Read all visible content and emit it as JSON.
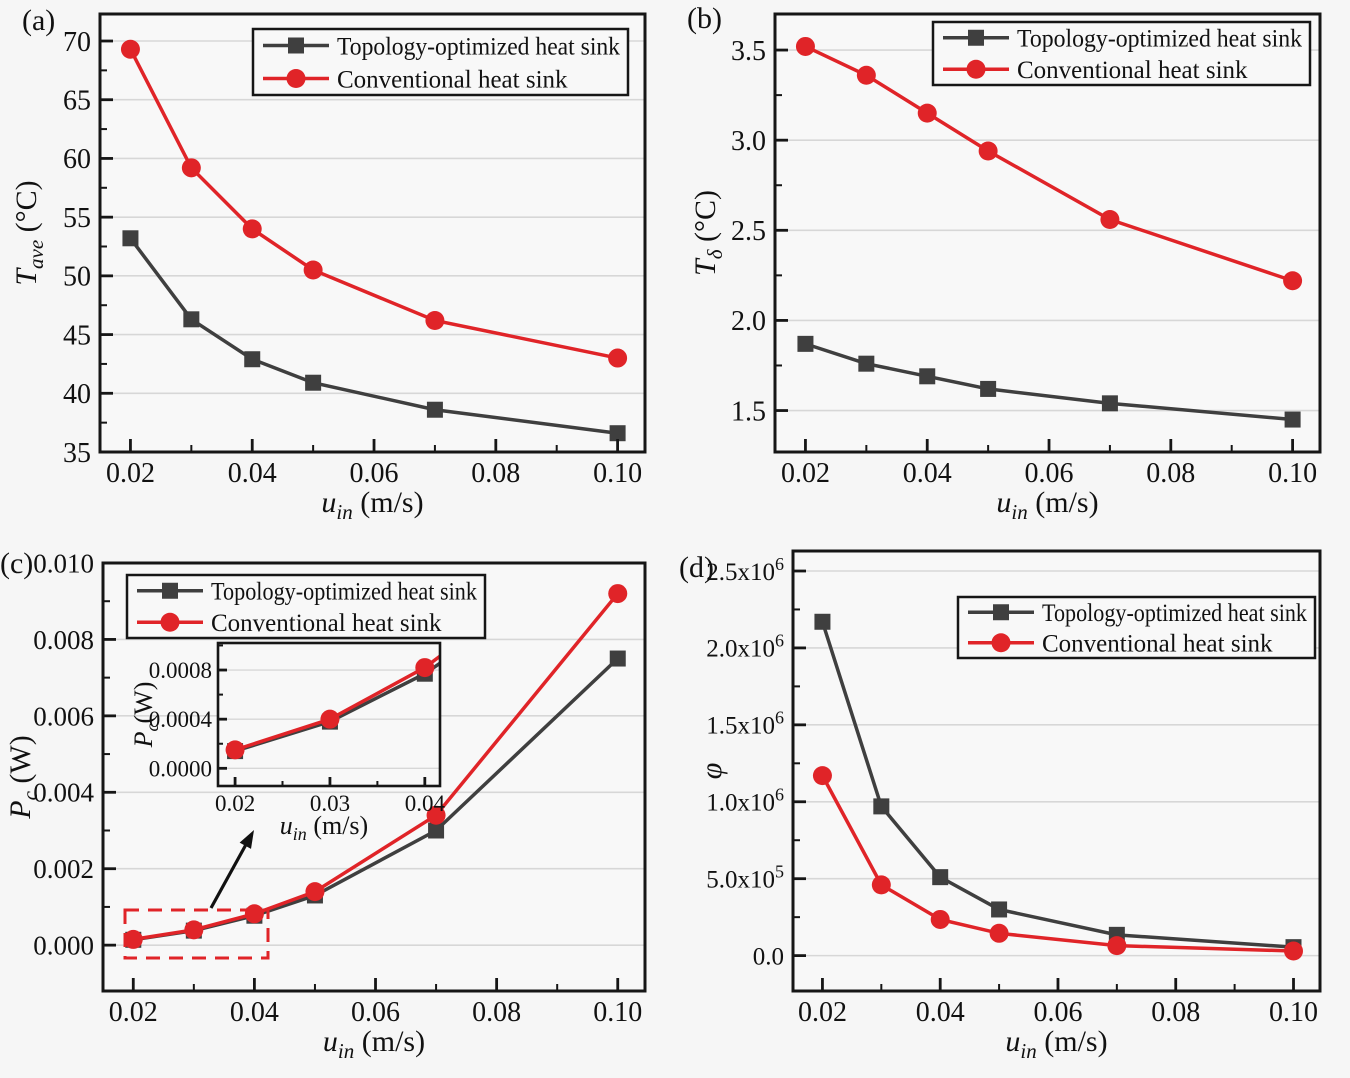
{
  "colors": {
    "topology": "#3f3f3f",
    "conventional": "#e02428",
    "grid": "#d7d7d7",
    "axis": "#161616",
    "plot_background": "#f8f8f8",
    "zoom_region": "#e02428"
  },
  "chart_data": [
    {
      "tag": "(a)",
      "type": "line",
      "xlabel": {
        "main": "u",
        "sub": "in",
        "rest": " (m/s)"
      },
      "ylabel": {
        "main": "T",
        "sub": "ave",
        "rest": " (°C)"
      },
      "xlim": [
        0.015,
        0.1045
      ],
      "ylim": [
        35,
        72.3
      ],
      "grid": "horizontal",
      "legend_position": "top-center",
      "x_ticks": [
        {
          "v": 0.02,
          "label": "0.02"
        },
        {
          "v": 0.04,
          "label": "0.04"
        },
        {
          "v": 0.06,
          "label": "0.06"
        },
        {
          "v": 0.08,
          "label": "0.08"
        },
        {
          "v": 0.1,
          "label": "0.10"
        }
      ],
      "x_minor_ticks": [
        0.03,
        0.05,
        0.07,
        0.09
      ],
      "y_ticks": [
        {
          "v": 35,
          "label": "35"
        },
        {
          "v": 40,
          "label": "40"
        },
        {
          "v": 45,
          "label": "45"
        },
        {
          "v": 50,
          "label": "50"
        },
        {
          "v": 55,
          "label": "55"
        },
        {
          "v": 60,
          "label": "60"
        },
        {
          "v": 65,
          "label": "65"
        },
        {
          "v": 70,
          "label": "70"
        }
      ],
      "y_minor_ticks": [
        37.5,
        42.5,
        47.5,
        52.5,
        57.5,
        62.5,
        67.5
      ],
      "x": [
        0.02,
        0.03,
        0.04,
        0.05,
        0.07,
        0.1
      ],
      "series": [
        {
          "name": "Topology-optimized heat sink",
          "marker": "square",
          "color_key": "topology",
          "values": [
            53.2,
            46.3,
            42.9,
            40.9,
            38.6,
            36.6
          ]
        },
        {
          "name": "Conventional heat sink",
          "marker": "circle",
          "color_key": "conventional",
          "values": [
            69.3,
            59.2,
            54.0,
            50.5,
            46.2,
            43.0
          ]
        }
      ]
    },
    {
      "tag": "(b)",
      "type": "line",
      "xlabel": {
        "main": "u",
        "sub": "in",
        "rest": " (m/s)"
      },
      "ylabel": {
        "main": "T",
        "sub": "δ",
        "rest": " (°C)"
      },
      "xlim": [
        0.015,
        0.1045
      ],
      "ylim": [
        1.27,
        3.7
      ],
      "grid": "horizontal",
      "legend_position": "top-right",
      "x_ticks": [
        {
          "v": 0.02,
          "label": "0.02"
        },
        {
          "v": 0.04,
          "label": "0.04"
        },
        {
          "v": 0.06,
          "label": "0.06"
        },
        {
          "v": 0.08,
          "label": "0.08"
        },
        {
          "v": 0.1,
          "label": "0.10"
        }
      ],
      "x_minor_ticks": [
        0.03,
        0.05,
        0.07,
        0.09
      ],
      "y_ticks": [
        {
          "v": 1.5,
          "label": "1.5"
        },
        {
          "v": 2.0,
          "label": "2.0"
        },
        {
          "v": 2.5,
          "label": "2.5"
        },
        {
          "v": 3.0,
          "label": "3.0"
        },
        {
          "v": 3.5,
          "label": "3.5"
        }
      ],
      "y_minor_ticks": [
        1.75,
        2.25,
        2.75,
        3.25
      ],
      "x": [
        0.02,
        0.03,
        0.04,
        0.05,
        0.07,
        0.1
      ],
      "series": [
        {
          "name": "Topology-optimized heat sink",
          "marker": "square",
          "color_key": "topology",
          "values": [
            1.87,
            1.76,
            1.69,
            1.62,
            1.54,
            1.45
          ]
        },
        {
          "name": "Conventional heat sink",
          "marker": "circle",
          "color_key": "conventional",
          "values": [
            3.52,
            3.36,
            3.15,
            2.94,
            2.56,
            2.22
          ]
        }
      ]
    },
    {
      "tag": "(c)",
      "type": "line",
      "xlabel": {
        "main": "u",
        "sub": "in",
        "rest": " (m/s)"
      },
      "ylabel": {
        "main": "P",
        "sub": "c",
        "rest": " (W)"
      },
      "xlim": [
        0.015,
        0.1045
      ],
      "ylim": [
        -0.0012,
        0.01
      ],
      "grid": "horizontal",
      "legend_position": "top-left",
      "x_ticks": [
        {
          "v": 0.02,
          "label": "0.02"
        },
        {
          "v": 0.04,
          "label": "0.04"
        },
        {
          "v": 0.06,
          "label": "0.06"
        },
        {
          "v": 0.08,
          "label": "0.08"
        },
        {
          "v": 0.1,
          "label": "0.10"
        }
      ],
      "x_minor_ticks": [
        0.03,
        0.05,
        0.07,
        0.09
      ],
      "y_ticks": [
        {
          "v": 0.0,
          "label": "0.000"
        },
        {
          "v": 0.002,
          "label": "0.002"
        },
        {
          "v": 0.004,
          "label": "0.004"
        },
        {
          "v": 0.006,
          "label": "0.006"
        },
        {
          "v": 0.008,
          "label": "0.008"
        },
        {
          "v": 0.01,
          "label": "0.010"
        }
      ],
      "y_minor_ticks": [
        0.001,
        0.003,
        0.005,
        0.007,
        0.009
      ],
      "x": [
        0.02,
        0.03,
        0.04,
        0.05,
        0.07,
        0.1
      ],
      "series": [
        {
          "name": "Topology-optimized heat sink",
          "marker": "square",
          "color_key": "topology",
          "values": [
            0.00014,
            0.00038,
            0.00077,
            0.0013,
            0.003,
            0.0075
          ]
        },
        {
          "name": "Conventional heat sink",
          "marker": "circle",
          "color_key": "conventional",
          "values": [
            0.00015,
            0.0004,
            0.00082,
            0.0014,
            0.0034,
            0.0092
          ]
        }
      ],
      "inset": {
        "xlabel": {
          "main": "u",
          "sub": "in",
          "rest": " (m/s)"
        },
        "ylabel": {
          "main": "P",
          "sub": "c",
          "rest": "(W)"
        },
        "xlim": [
          0.0182,
          0.0416
        ],
        "ylim": [
          -0.000144,
          0.00102
        ],
        "x_ticks": [
          {
            "v": 0.02,
            "label": "0.02"
          },
          {
            "v": 0.03,
            "label": "0.03"
          },
          {
            "v": 0.04,
            "label": "0.04"
          }
        ],
        "x_minor_ticks": [
          0.025,
          0.035
        ],
        "y_ticks": [
          {
            "v": 0.0,
            "label": "0.0000"
          },
          {
            "v": 0.0004,
            "label": "0.0004"
          },
          {
            "v": 0.0008,
            "label": "0.0008"
          }
        ],
        "y_minor_ticks": [
          0.0002,
          0.0006,
          0.001
        ]
      }
    },
    {
      "tag": "(d)",
      "type": "line",
      "xlabel": {
        "main": "u",
        "sub": "in",
        "rest": " (m/s)"
      },
      "ylabel": {
        "main": "φ",
        "sub": "",
        "rest": ""
      },
      "xlim": [
        0.015,
        0.1045
      ],
      "ylim": [
        -230000,
        2630000
      ],
      "grid": "horizontal",
      "legend_position": "top-right",
      "x_ticks": [
        {
          "v": 0.02,
          "label": "0.02"
        },
        {
          "v": 0.04,
          "label": "0.04"
        },
        {
          "v": 0.06,
          "label": "0.06"
        },
        {
          "v": 0.08,
          "label": "0.08"
        },
        {
          "v": 0.1,
          "label": "0.10"
        }
      ],
      "x_minor_ticks": [
        0.03,
        0.05,
        0.07,
        0.09
      ],
      "y_ticks": [
        {
          "v": 0,
          "label": "0.0"
        },
        {
          "v": 500000,
          "label": "5.0x10^5"
        },
        {
          "v": 1000000,
          "label": "1.0x10^6"
        },
        {
          "v": 1500000,
          "label": "1.5x10^6"
        },
        {
          "v": 2000000,
          "label": "2.0x10^6"
        },
        {
          "v": 2500000,
          "label": "2.5x10^6"
        }
      ],
      "y_minor_ticks": [
        250000,
        750000,
        1250000,
        1750000,
        2250000
      ],
      "x": [
        0.02,
        0.03,
        0.04,
        0.05,
        0.07,
        0.1
      ],
      "series": [
        {
          "name": "Topology-optimized heat sink",
          "marker": "square",
          "color_key": "topology",
          "values": [
            2170000,
            970000,
            510000,
            300000,
            135000,
            55000
          ]
        },
        {
          "name": "Conventional heat sink",
          "marker": "circle",
          "color_key": "conventional",
          "values": [
            1170000,
            460000,
            235000,
            145000,
            65000,
            30000
          ]
        }
      ]
    }
  ]
}
